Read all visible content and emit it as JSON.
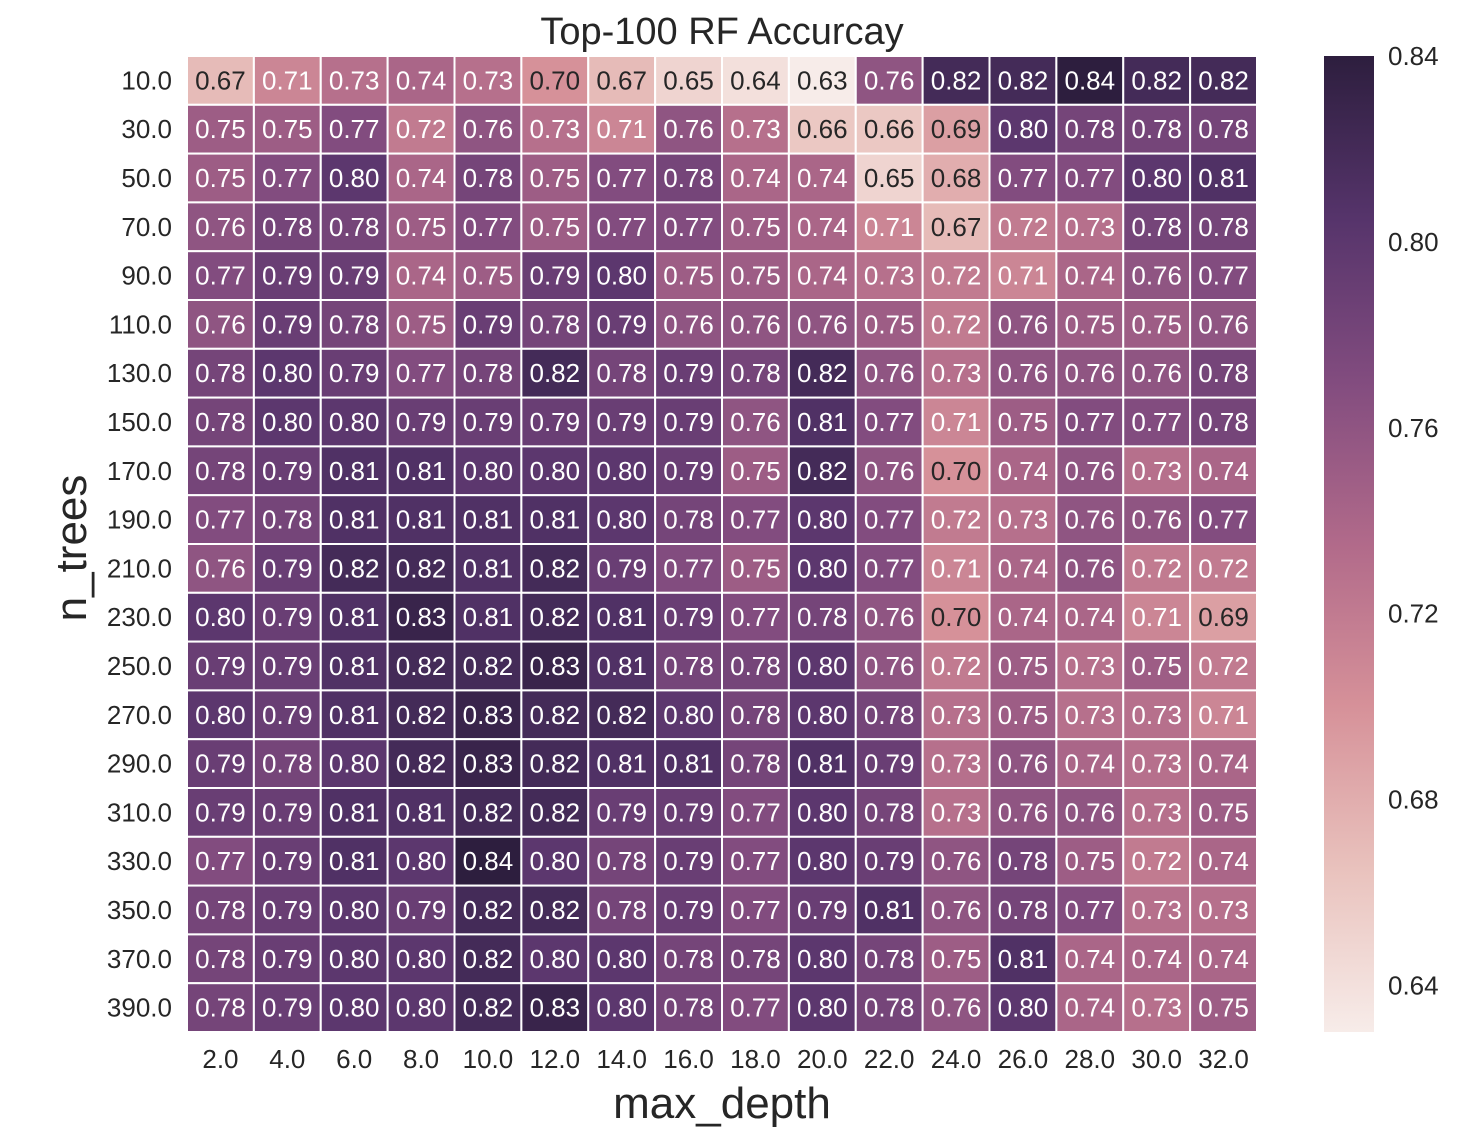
{
  "chart_data": {
    "type": "heatmap",
    "title": "Top-100 RF Accurcay",
    "xlabel": "max_depth",
    "ylabel": "n_trees",
    "x_categories": [
      "2.0",
      "4.0",
      "6.0",
      "8.0",
      "10.0",
      "12.0",
      "14.0",
      "16.0",
      "18.0",
      "20.0",
      "22.0",
      "24.0",
      "26.0",
      "28.0",
      "30.0",
      "32.0"
    ],
    "y_categories": [
      "10.0",
      "30.0",
      "50.0",
      "70.0",
      "90.0",
      "110.0",
      "130.0",
      "150.0",
      "170.0",
      "190.0",
      "210.0",
      "230.0",
      "250.0",
      "270.0",
      "290.0",
      "310.0",
      "330.0",
      "350.0",
      "370.0",
      "390.0"
    ],
    "values": [
      [
        0.67,
        0.71,
        0.73,
        0.74,
        0.73,
        0.7,
        0.67,
        0.65,
        0.64,
        0.63,
        0.76,
        0.82,
        0.82,
        0.84,
        0.82,
        0.82
      ],
      [
        0.75,
        0.75,
        0.77,
        0.72,
        0.76,
        0.73,
        0.71,
        0.76,
        0.73,
        0.66,
        0.66,
        0.69,
        0.8,
        0.78,
        0.78,
        0.78
      ],
      [
        0.75,
        0.77,
        0.8,
        0.74,
        0.78,
        0.75,
        0.77,
        0.78,
        0.74,
        0.74,
        0.65,
        0.68,
        0.77,
        0.77,
        0.8,
        0.81
      ],
      [
        0.76,
        0.78,
        0.78,
        0.75,
        0.77,
        0.75,
        0.77,
        0.77,
        0.75,
        0.74,
        0.71,
        0.67,
        0.72,
        0.73,
        0.78,
        0.78
      ],
      [
        0.77,
        0.79,
        0.79,
        0.74,
        0.75,
        0.79,
        0.8,
        0.75,
        0.75,
        0.74,
        0.73,
        0.72,
        0.71,
        0.74,
        0.76,
        0.77
      ],
      [
        0.76,
        0.79,
        0.78,
        0.75,
        0.79,
        0.78,
        0.79,
        0.76,
        0.76,
        0.76,
        0.75,
        0.72,
        0.76,
        0.75,
        0.75,
        0.76
      ],
      [
        0.78,
        0.8,
        0.79,
        0.77,
        0.78,
        0.82,
        0.78,
        0.79,
        0.78,
        0.82,
        0.76,
        0.73,
        0.76,
        0.76,
        0.76,
        0.78
      ],
      [
        0.78,
        0.8,
        0.8,
        0.79,
        0.79,
        0.79,
        0.79,
        0.79,
        0.76,
        0.81,
        0.77,
        0.71,
        0.75,
        0.77,
        0.77,
        0.78
      ],
      [
        0.78,
        0.79,
        0.81,
        0.81,
        0.8,
        0.8,
        0.8,
        0.79,
        0.75,
        0.82,
        0.76,
        0.7,
        0.74,
        0.76,
        0.73,
        0.74
      ],
      [
        0.77,
        0.78,
        0.81,
        0.81,
        0.81,
        0.81,
        0.8,
        0.78,
        0.77,
        0.8,
        0.77,
        0.72,
        0.73,
        0.76,
        0.76,
        0.77
      ],
      [
        0.76,
        0.79,
        0.82,
        0.82,
        0.81,
        0.82,
        0.79,
        0.77,
        0.75,
        0.8,
        0.77,
        0.71,
        0.74,
        0.76,
        0.72,
        0.72
      ],
      [
        0.8,
        0.79,
        0.81,
        0.83,
        0.81,
        0.82,
        0.81,
        0.79,
        0.77,
        0.78,
        0.76,
        0.7,
        0.74,
        0.74,
        0.71,
        0.69
      ],
      [
        0.79,
        0.79,
        0.81,
        0.82,
        0.82,
        0.83,
        0.81,
        0.78,
        0.78,
        0.8,
        0.76,
        0.72,
        0.75,
        0.73,
        0.75,
        0.72
      ],
      [
        0.8,
        0.79,
        0.81,
        0.82,
        0.83,
        0.82,
        0.82,
        0.8,
        0.78,
        0.8,
        0.78,
        0.73,
        0.75,
        0.73,
        0.73,
        0.71
      ],
      [
        0.79,
        0.78,
        0.8,
        0.82,
        0.83,
        0.82,
        0.81,
        0.81,
        0.78,
        0.81,
        0.79,
        0.73,
        0.76,
        0.74,
        0.73,
        0.74
      ],
      [
        0.79,
        0.79,
        0.81,
        0.81,
        0.82,
        0.82,
        0.79,
        0.79,
        0.77,
        0.8,
        0.78,
        0.73,
        0.76,
        0.76,
        0.73,
        0.75
      ],
      [
        0.77,
        0.79,
        0.81,
        0.8,
        0.84,
        0.8,
        0.78,
        0.79,
        0.77,
        0.8,
        0.79,
        0.76,
        0.78,
        0.75,
        0.72,
        0.74
      ],
      [
        0.78,
        0.79,
        0.8,
        0.79,
        0.82,
        0.82,
        0.78,
        0.79,
        0.77,
        0.79,
        0.81,
        0.76,
        0.78,
        0.77,
        0.73,
        0.73
      ],
      [
        0.78,
        0.79,
        0.8,
        0.8,
        0.82,
        0.8,
        0.8,
        0.78,
        0.78,
        0.8,
        0.78,
        0.75,
        0.81,
        0.74,
        0.74,
        0.74
      ],
      [
        0.78,
        0.79,
        0.8,
        0.8,
        0.82,
        0.83,
        0.8,
        0.78,
        0.77,
        0.8,
        0.78,
        0.76,
        0.8,
        0.74,
        0.73,
        0.75
      ]
    ],
    "value_format": "0.00",
    "color_range": [
      0.63,
      0.84
    ],
    "colorbar_ticks": [
      "0.64",
      "0.68",
      "0.72",
      "0.76",
      "0.80",
      "0.84"
    ],
    "colormap": [
      "#f7ece9",
      "#e9c2bd",
      "#d69199",
      "#b16a8a",
      "#824c7f",
      "#56346b",
      "#2d1e3e"
    ],
    "grid": false,
    "legend": "colorbar-right"
  }
}
